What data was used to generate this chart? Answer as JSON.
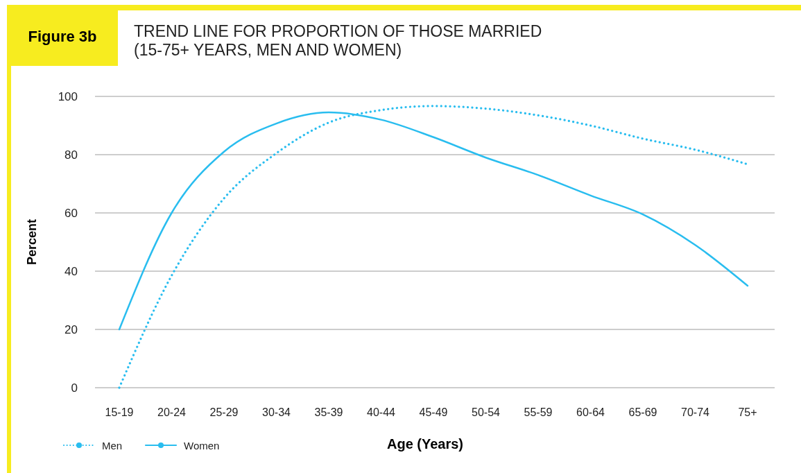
{
  "chart_data": {
    "type": "line",
    "title": "Figure 3b",
    "subtitle": "TREND LINE FOR PROPORTION OF THOSE MARRIED\n(15-75+ YEARS, MEN AND WOMEN)",
    "xlabel": "Age (Years)",
    "ylabel": "Percent",
    "categories": [
      "15-19",
      "20-24",
      "25-29",
      "30-34",
      "35-39",
      "40-44",
      "45-49",
      "50-54",
      "55-59",
      "60-64",
      "65-69",
      "70-74",
      "75+"
    ],
    "series": [
      {
        "name": "Men",
        "color": "#29bdef",
        "line_style": "dotted",
        "values": [
          0,
          38.5,
          65,
          80.5,
          91,
          95.3,
          96.7,
          95.8,
          93.5,
          90,
          85.5,
          81.7,
          76.7
        ]
      },
      {
        "name": "Women",
        "color": "#29bdef",
        "line_style": "solid",
        "values": [
          20,
          60,
          81,
          90.7,
          94.5,
          92,
          86,
          79,
          73,
          66,
          59.5,
          49,
          35
        ]
      }
    ],
    "ylim": [
      0,
      100
    ],
    "yticks": [
      0,
      20,
      40,
      60,
      80,
      100
    ],
    "grid": "y",
    "legend": "bottom left"
  }
}
